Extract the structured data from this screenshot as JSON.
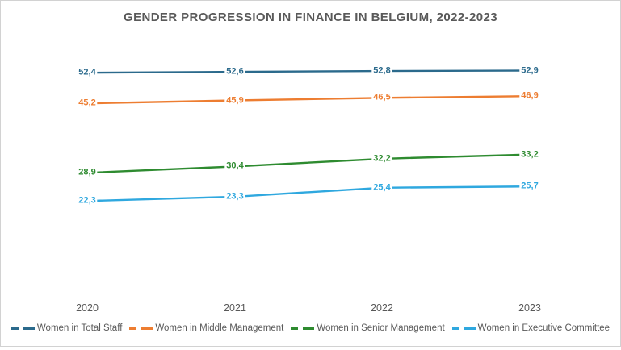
{
  "title": "GENDER PROGRESSION IN FINANCE IN BELGIUM, 2022-2023",
  "colors": {
    "title_text": "#595959",
    "axis_text": "#595959",
    "axis_line": "#d9d9d9",
    "background": "#ffffff",
    "frame_border": "#d2d2d2"
  },
  "chart_data": {
    "type": "line",
    "title": "GENDER PROGRESSION IN FINANCE IN BELGIUM, 2022-2023",
    "categories": [
      "2020",
      "2021",
      "2022",
      "2023"
    ],
    "series": [
      {
        "name": "Women in Total Staff",
        "color": "#2b6a8c",
        "values": [
          52.4,
          52.6,
          52.8,
          52.9
        ],
        "labels": [
          "52,4",
          "52,6",
          "52,8",
          "52,9"
        ]
      },
      {
        "name": "Women in Middle Management",
        "color": "#ed7d31",
        "values": [
          45.2,
          45.9,
          46.5,
          46.9
        ],
        "labels": [
          "45,2",
          "45,9",
          "46,5",
          "46,9"
        ]
      },
      {
        "name": "Women in Senior Management",
        "color": "#2e8b30",
        "values": [
          28.9,
          30.4,
          32.2,
          33.2
        ],
        "labels": [
          "28,9",
          "30,4",
          "32,2",
          "33,2"
        ]
      },
      {
        "name": "Women in Executive Committee",
        "color": "#2fa8df",
        "values": [
          22.3,
          23.3,
          25.4,
          25.7
        ],
        "labels": [
          "22,3",
          "23,3",
          "25,4",
          "25,7"
        ]
      }
    ],
    "xlabel": "",
    "ylabel": "",
    "ylim": [
      0,
      60
    ],
    "grid": false,
    "y_axis_visible": false,
    "data_labels": true,
    "legend_position": "bottom"
  }
}
